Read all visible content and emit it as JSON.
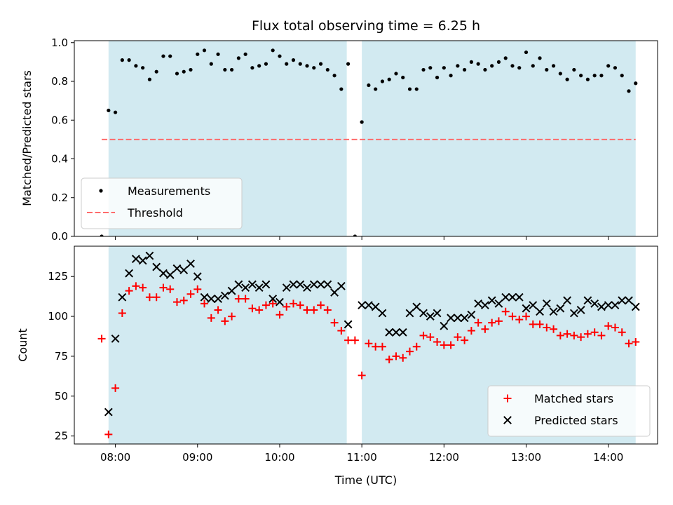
{
  "chart_data": [
    {
      "type": "scatter",
      "title": "Flux total observing time = 6.25 h",
      "xlabel": "",
      "ylabel": "Matched/Predicted stars",
      "xlim": [
        "07:30",
        "14:36"
      ],
      "ylim": [
        0,
        1.01
      ],
      "x_ticks": [
        "08:00",
        "09:00",
        "10:00",
        "11:00",
        "12:00",
        "13:00",
        "14:00"
      ],
      "y_ticks": [
        "0.0",
        "0.2",
        "0.4",
        "0.6",
        "0.8",
        "1.0"
      ],
      "shaded_intervals": [
        {
          "start": "07:55",
          "end": "10:49"
        },
        {
          "start": "11:00",
          "end": "14:20"
        }
      ],
      "shade_color": "#add8e6",
      "threshold": {
        "name": "Threshold",
        "value": 0.5,
        "start": "07:50",
        "end": "14:20",
        "color": "#ff6b6b"
      },
      "legend": {
        "position": "lower-left",
        "entries": [
          "Measurements",
          "Threshold"
        ]
      },
      "series": [
        {
          "name": "Measurements",
          "marker": "dot",
          "color": "#000000",
          "points": [
            [
              "07:50",
              0.0
            ],
            [
              "07:55",
              0.65
            ],
            [
              "08:00",
              0.64
            ],
            [
              "08:05",
              0.91
            ],
            [
              "08:10",
              0.91
            ],
            [
              "08:15",
              0.88
            ],
            [
              "08:20",
              0.87
            ],
            [
              "08:25",
              0.81
            ],
            [
              "08:30",
              0.85
            ],
            [
              "08:35",
              0.93
            ],
            [
              "08:40",
              0.93
            ],
            [
              "08:45",
              0.84
            ],
            [
              "08:50",
              0.85
            ],
            [
              "08:55",
              0.86
            ],
            [
              "09:00",
              0.94
            ],
            [
              "09:05",
              0.96
            ],
            [
              "09:10",
              0.89
            ],
            [
              "09:15",
              0.94
            ],
            [
              "09:20",
              0.86
            ],
            [
              "09:25",
              0.86
            ],
            [
              "09:30",
              0.92
            ],
            [
              "09:35",
              0.94
            ],
            [
              "09:40",
              0.87
            ],
            [
              "09:45",
              0.88
            ],
            [
              "09:50",
              0.89
            ],
            [
              "09:55",
              0.96
            ],
            [
              "10:00",
              0.93
            ],
            [
              "10:05",
              0.89
            ],
            [
              "10:10",
              0.91
            ],
            [
              "10:15",
              0.89
            ],
            [
              "10:20",
              0.88
            ],
            [
              "10:25",
              0.87
            ],
            [
              "10:30",
              0.89
            ],
            [
              "10:35",
              0.86
            ],
            [
              "10:40",
              0.83
            ],
            [
              "10:45",
              0.76
            ],
            [
              "10:50",
              0.89
            ],
            [
              "10:55",
              0.0
            ],
            [
              "11:00",
              0.59
            ],
            [
              "11:05",
              0.78
            ],
            [
              "11:10",
              0.76
            ],
            [
              "11:15",
              0.8
            ],
            [
              "11:20",
              0.81
            ],
            [
              "11:25",
              0.84
            ],
            [
              "11:30",
              0.82
            ],
            [
              "11:35",
              0.76
            ],
            [
              "11:40",
              0.76
            ],
            [
              "11:45",
              0.86
            ],
            [
              "11:50",
              0.87
            ],
            [
              "11:55",
              0.82
            ],
            [
              "12:00",
              0.87
            ],
            [
              "12:05",
              0.83
            ],
            [
              "12:10",
              0.88
            ],
            [
              "12:15",
              0.86
            ],
            [
              "12:20",
              0.9
            ],
            [
              "12:25",
              0.89
            ],
            [
              "12:30",
              0.86
            ],
            [
              "12:35",
              0.88
            ],
            [
              "12:40",
              0.9
            ],
            [
              "12:45",
              0.92
            ],
            [
              "12:50",
              0.88
            ],
            [
              "12:55",
              0.87
            ],
            [
              "13:00",
              0.95
            ],
            [
              "13:05",
              0.88
            ],
            [
              "13:10",
              0.92
            ],
            [
              "13:15",
              0.86
            ],
            [
              "13:20",
              0.88
            ],
            [
              "13:25",
              0.84
            ],
            [
              "13:30",
              0.81
            ],
            [
              "13:35",
              0.86
            ],
            [
              "13:40",
              0.83
            ],
            [
              "13:45",
              0.81
            ],
            [
              "13:50",
              0.83
            ],
            [
              "13:55",
              0.83
            ],
            [
              "14:00",
              0.88
            ],
            [
              "14:05",
              0.87
            ],
            [
              "14:10",
              0.83
            ],
            [
              "14:15",
              0.75
            ],
            [
              "14:20",
              0.79
            ]
          ]
        }
      ]
    },
    {
      "type": "scatter",
      "title": "",
      "xlabel": "Time (UTC)",
      "ylabel": "Count",
      "xlim": [
        "07:30",
        "14:36"
      ],
      "ylim": [
        20,
        144
      ],
      "x_ticks": [
        "08:00",
        "09:00",
        "10:00",
        "11:00",
        "12:00",
        "13:00",
        "14:00"
      ],
      "y_ticks": [
        "25",
        "50",
        "75",
        "100",
        "125"
      ],
      "shaded_intervals": [
        {
          "start": "07:55",
          "end": "10:49"
        },
        {
          "start": "11:00",
          "end": "14:20"
        }
      ],
      "shade_color": "#add8e6",
      "legend": {
        "position": "lower-right",
        "entries": [
          "Matched stars",
          "Predicted stars"
        ]
      },
      "series": [
        {
          "name": "Matched stars",
          "marker": "plus",
          "color": "#ff0000",
          "points": [
            [
              "07:50",
              86
            ],
            [
              "07:55",
              26
            ],
            [
              "08:00",
              55
            ],
            [
              "08:05",
              102
            ],
            [
              "08:10",
              116
            ],
            [
              "08:15",
              119
            ],
            [
              "08:20",
              118
            ],
            [
              "08:25",
              112
            ],
            [
              "08:30",
              112
            ],
            [
              "08:35",
              118
            ],
            [
              "08:40",
              117
            ],
            [
              "08:45",
              109
            ],
            [
              "08:50",
              110
            ],
            [
              "08:55",
              114
            ],
            [
              "09:00",
              117
            ],
            [
              "09:05",
              108
            ],
            [
              "09:10",
              99
            ],
            [
              "09:15",
              104
            ],
            [
              "09:20",
              97
            ],
            [
              "09:25",
              100
            ],
            [
              "09:30",
              111
            ],
            [
              "09:35",
              111
            ],
            [
              "09:40",
              105
            ],
            [
              "09:45",
              104
            ],
            [
              "09:50",
              107
            ],
            [
              "09:55",
              108
            ],
            [
              "10:00",
              101
            ],
            [
              "10:05",
              106
            ],
            [
              "10:10",
              108
            ],
            [
              "10:15",
              107
            ],
            [
              "10:20",
              104
            ],
            [
              "10:25",
              104
            ],
            [
              "10:30",
              107
            ],
            [
              "10:35",
              104
            ],
            [
              "10:40",
              96
            ],
            [
              "10:45",
              91
            ],
            [
              "10:50",
              85
            ],
            [
              "10:55",
              85
            ],
            [
              "11:00",
              63
            ],
            [
              "11:05",
              83
            ],
            [
              "11:10",
              81
            ],
            [
              "11:15",
              81
            ],
            [
              "11:20",
              73
            ],
            [
              "11:25",
              75
            ],
            [
              "11:30",
              74
            ],
            [
              "11:35",
              78
            ],
            [
              "11:40",
              81
            ],
            [
              "11:45",
              88
            ],
            [
              "11:50",
              87
            ],
            [
              "11:55",
              84
            ],
            [
              "12:00",
              82
            ],
            [
              "12:05",
              82
            ],
            [
              "12:10",
              87
            ],
            [
              "12:15",
              85
            ],
            [
              "12:20",
              91
            ],
            [
              "12:25",
              96
            ],
            [
              "12:30",
              92
            ],
            [
              "12:35",
              96
            ],
            [
              "12:40",
              97
            ],
            [
              "12:45",
              103
            ],
            [
              "12:50",
              100
            ],
            [
              "12:55",
              98
            ],
            [
              "13:00",
              100
            ],
            [
              "13:05",
              95
            ],
            [
              "13:10",
              95
            ],
            [
              "13:15",
              93
            ],
            [
              "13:20",
              92
            ],
            [
              "13:25",
              88
            ],
            [
              "13:30",
              89
            ],
            [
              "13:35",
              88
            ],
            [
              "13:40",
              87
            ],
            [
              "13:45",
              89
            ],
            [
              "13:50",
              90
            ],
            [
              "13:55",
              88
            ],
            [
              "14:00",
              94
            ],
            [
              "14:05",
              93
            ],
            [
              "14:10",
              90
            ],
            [
              "14:15",
              83
            ],
            [
              "14:20",
              84
            ]
          ]
        },
        {
          "name": "Predicted stars",
          "marker": "x",
          "color": "#000000",
          "points": [
            [
              "07:55",
              40
            ],
            [
              "08:00",
              86
            ],
            [
              "08:05",
              112
            ],
            [
              "08:10",
              127
            ],
            [
              "08:15",
              136
            ],
            [
              "08:20",
              135
            ],
            [
              "08:25",
              138
            ],
            [
              "08:30",
              131
            ],
            [
              "08:35",
              127
            ],
            [
              "08:40",
              126
            ],
            [
              "08:45",
              130
            ],
            [
              "08:50",
              129
            ],
            [
              "08:55",
              133
            ],
            [
              "09:00",
              125
            ],
            [
              "09:05",
              112
            ],
            [
              "09:10",
              111
            ],
            [
              "09:15",
              111
            ],
            [
              "09:20",
              113
            ],
            [
              "09:25",
              116
            ],
            [
              "09:30",
              120
            ],
            [
              "09:35",
              118
            ],
            [
              "09:40",
              120
            ],
            [
              "09:45",
              118
            ],
            [
              "09:50",
              120
            ],
            [
              "09:55",
              111
            ],
            [
              "10:00",
              109
            ],
            [
              "10:05",
              118
            ],
            [
              "10:10",
              120
            ],
            [
              "10:15",
              120
            ],
            [
              "10:20",
              118
            ],
            [
              "10:25",
              120
            ],
            [
              "10:30",
              120
            ],
            [
              "10:35",
              120
            ],
            [
              "10:40",
              115
            ],
            [
              "10:45",
              119
            ],
            [
              "10:50",
              95
            ],
            [
              "11:00",
              107
            ],
            [
              "11:05",
              107
            ],
            [
              "11:10",
              106
            ],
            [
              "11:15",
              102
            ],
            [
              "11:20",
              90
            ],
            [
              "11:25",
              90
            ],
            [
              "11:30",
              90
            ],
            [
              "11:35",
              102
            ],
            [
              "11:40",
              106
            ],
            [
              "11:45",
              102
            ],
            [
              "11:50",
              100
            ],
            [
              "11:55",
              102
            ],
            [
              "12:00",
              94
            ],
            [
              "12:05",
              99
            ],
            [
              "12:10",
              99
            ],
            [
              "12:15",
              99
            ],
            [
              "12:20",
              101
            ],
            [
              "12:25",
              108
            ],
            [
              "12:30",
              107
            ],
            [
              "12:35",
              110
            ],
            [
              "12:40",
              108
            ],
            [
              "12:45",
              112
            ],
            [
              "12:50",
              112
            ],
            [
              "12:55",
              112
            ],
            [
              "13:00",
              105
            ],
            [
              "13:05",
              107
            ],
            [
              "13:10",
              103
            ],
            [
              "13:15",
              108
            ],
            [
              "13:20",
              103
            ],
            [
              "13:25",
              105
            ],
            [
              "13:30",
              110
            ],
            [
              "13:35",
              102
            ],
            [
              "13:40",
              104
            ],
            [
              "13:45",
              110
            ],
            [
              "13:50",
              108
            ],
            [
              "13:55",
              106
            ],
            [
              "14:00",
              107
            ],
            [
              "14:05",
              107
            ],
            [
              "14:10",
              110
            ],
            [
              "14:15",
              110
            ],
            [
              "14:20",
              106
            ]
          ]
        }
      ]
    }
  ]
}
